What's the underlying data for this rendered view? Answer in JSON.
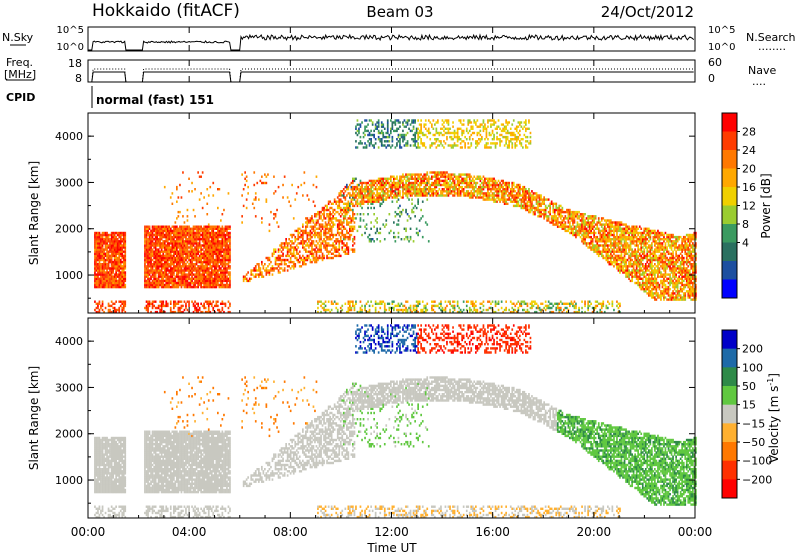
{
  "header": {
    "station": "Hokkaido (fitACF)",
    "beam": "Beam 03",
    "date": "24/Oct/2012"
  },
  "noise_panel": {
    "left_label": "N.Sky",
    "right_label": "N.Search",
    "y_ticks": [
      "10^5",
      "10^0"
    ],
    "legend_line": "........"
  },
  "freq_panel": {
    "left_label_1": "Freq.",
    "left_label_2": "[MHz]",
    "left_ticks": [
      "18",
      "8"
    ],
    "right_label": "Nave",
    "right_ticks": [
      "60",
      "0"
    ],
    "legend_line": "...."
  },
  "cpid_panel": {
    "label": "CPID",
    "mode": "normal (fast) 151"
  },
  "x_axis": {
    "ticks": [
      "00:00",
      "04:00",
      "08:00",
      "12:00",
      "16:00",
      "20:00",
      "00:00"
    ],
    "label": "Time UT"
  },
  "chart_data": [
    {
      "type": "heatmap",
      "quantity": "power",
      "ylabel": "Slant Range [km]",
      "y_ticks": [
        "1000",
        "2000",
        "3000",
        "4000"
      ],
      "ylim": [
        180,
        4500
      ],
      "xlim_hours": [
        0,
        24
      ],
      "colorbar": {
        "label": "Power [dB]",
        "ticks": [
          "28",
          "24",
          "20",
          "16",
          "12",
          "8",
          "4"
        ],
        "colors": [
          "#ff0000",
          "#ff3c00",
          "#ff7800",
          "#ffa800",
          "#f0d000",
          "#9acc30",
          "#3a9a60",
          "#2a7060",
          "#1d4fa0",
          "#0000ff"
        ]
      },
      "data_extent_hours": [
        {
          "segment": "a",
          "from": 0.2,
          "to": 1.5
        },
        {
          "segment": "b",
          "from": 2.2,
          "to": 5.6
        },
        {
          "segment": "c",
          "from": 6.0,
          "to": 24
        }
      ]
    },
    {
      "type": "heatmap",
      "quantity": "velocity",
      "ylabel": "Slant Range [km]",
      "y_ticks": [
        "1000",
        "2000",
        "3000",
        "4000"
      ],
      "ylim": [
        180,
        4500
      ],
      "xlim_hours": [
        0,
        24
      ],
      "colorbar": {
        "label_main": "Velocity [m s",
        "label_sup": "-1",
        "label_end": "]",
        "ticks": [
          "200",
          "100",
          "50",
          "15",
          "−15",
          "−50",
          "−100",
          "−200"
        ],
        "colors": [
          "#0000c8",
          "#1e6aa8",
          "#2e8a48",
          "#60c840",
          "#c8c8c0",
          "#ffb030",
          "#ff7800",
          "#ff3000",
          "#ff0000"
        ]
      }
    }
  ]
}
